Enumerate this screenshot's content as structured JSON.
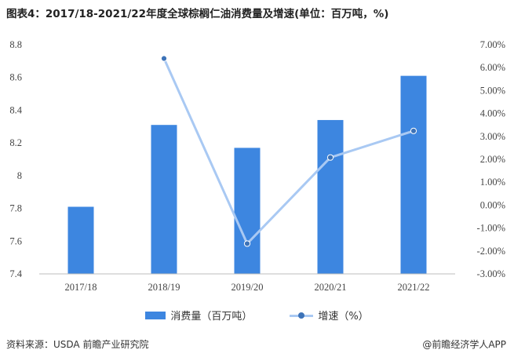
{
  "header": {
    "title": "图表4：2017/18-2021/22年度全球棕榈仁油消费量及增速(单位：百万吨，%)"
  },
  "footer": {
    "source": "资料来源：USDA 前瞻产业研究院",
    "brand": "@前瞻经济学人APP"
  },
  "colors": {
    "bar": "#3d86e0",
    "line": "#a9c9f3",
    "marker": "#3d73b8"
  },
  "chart_data": {
    "type": "bar",
    "title": "图表4：2017/18-2021/22年度全球棕榈仁油消费量及增速(单位：百万吨，%)",
    "categories": [
      "2017/18",
      "2018/19",
      "2019/20",
      "2020/21",
      "2021/22"
    ],
    "series": [
      {
        "name": "消费量（百万吨）",
        "type": "bar",
        "axis": "left",
        "values": [
          7.81,
          8.31,
          8.17,
          8.34,
          8.61
        ]
      },
      {
        "name": "增速（%）",
        "type": "line",
        "axis": "right",
        "values": [
          null,
          6.4,
          -1.68,
          2.08,
          3.24
        ]
      }
    ],
    "y_left": {
      "ylim": [
        7.4,
        8.8
      ],
      "ticks": [
        "7.4",
        "7.6",
        "7.8",
        "8",
        "8.2",
        "8.4",
        "8.6",
        "8.8"
      ]
    },
    "y_right": {
      "ylim": [
        -3,
        7
      ],
      "ticks": [
        "-3.00%",
        "-2.00%",
        "-1.00%",
        "0.00%",
        "1.00%",
        "2.00%",
        "3.00%",
        "4.00%",
        "5.00%",
        "6.00%",
        "7.00%"
      ]
    },
    "legend": "bottom",
    "grid": false
  }
}
